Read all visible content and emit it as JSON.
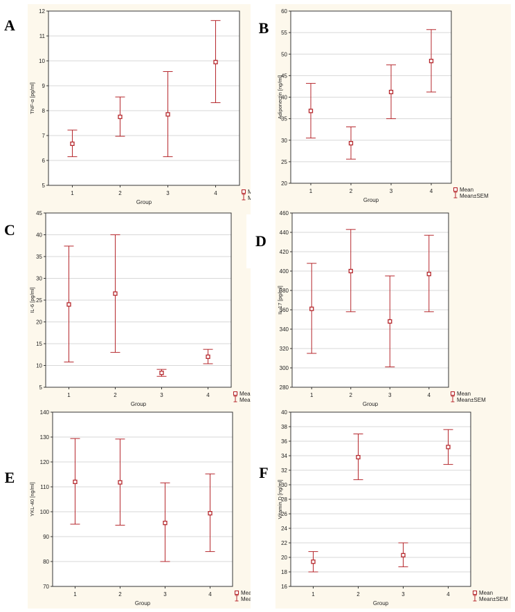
{
  "legend": {
    "mean": "Mean",
    "sem": "Mean±SEM"
  },
  "colors": {
    "series": "#b5262b",
    "grid": "#d7d7d7",
    "axis": "#333333"
  },
  "chart_data": [
    {
      "panel": "A",
      "type": "scatter",
      "title": "",
      "xlabel": "Group",
      "ylabel": "TNF-α [pg/ml]",
      "categories": [
        "1",
        "2",
        "3",
        "4"
      ],
      "ylim": [
        5,
        12
      ],
      "yticks": [
        "5",
        "6",
        "7",
        "8",
        "9",
        "10",
        "11",
        "12"
      ],
      "mean": [
        6.67,
        7.75,
        7.85,
        9.95
      ],
      "lower": [
        6.15,
        6.97,
        6.15,
        8.32
      ],
      "upper": [
        7.22,
        8.55,
        9.57,
        11.62
      ],
      "grid": true,
      "legend_position": "bottom-right"
    },
    {
      "panel": "B",
      "type": "scatter",
      "title": "",
      "xlabel": "Group",
      "ylabel": "Adiponectin [ng/ml]",
      "categories": [
        "1",
        "2",
        "3",
        "4"
      ],
      "ylim": [
        20,
        60
      ],
      "yticks": [
        "20",
        "25",
        "30",
        "35",
        "40",
        "45",
        "50",
        "55",
        "60"
      ],
      "mean": [
        36.8,
        29.3,
        41.2,
        48.4
      ],
      "lower": [
        30.5,
        25.6,
        35.0,
        41.2
      ],
      "upper": [
        43.2,
        33.1,
        47.5,
        55.7
      ],
      "grid": true,
      "legend_position": "bottom-right"
    },
    {
      "panel": "C",
      "type": "scatter",
      "title": "",
      "xlabel": "Group",
      "ylabel": "IL-6 [pg/ml]",
      "categories": [
        "1",
        "2",
        "3",
        "4"
      ],
      "ylim": [
        5,
        45
      ],
      "yticks": [
        "5",
        "10",
        "15",
        "20",
        "25",
        "30",
        "35",
        "40",
        "45"
      ],
      "mean": [
        24.0,
        26.5,
        8.3,
        12.0
      ],
      "lower": [
        10.8,
        13.0,
        7.5,
        10.4
      ],
      "upper": [
        37.4,
        40.0,
        9.1,
        13.7
      ],
      "grid": true,
      "legend_position": "bottom-right"
    },
    {
      "panel": "D",
      "type": "scatter",
      "title": "",
      "xlabel": "Group",
      "ylabel": "IL-17 [pg/ml]",
      "categories": [
        "1",
        "2",
        "3",
        "4"
      ],
      "ylim": [
        280,
        460
      ],
      "yticks": [
        "280",
        "300",
        "320",
        "340",
        "360",
        "380",
        "400",
        "420",
        "440",
        "460"
      ],
      "mean": [
        361,
        400,
        348,
        397
      ],
      "lower": [
        315,
        358,
        301,
        358
      ],
      "upper": [
        408,
        443,
        395,
        437
      ],
      "grid": true,
      "legend_position": "bottom-right"
    },
    {
      "panel": "E",
      "type": "scatter",
      "title": "",
      "xlabel": "Group",
      "ylabel": "YKL-40 [ng/ml]",
      "categories": [
        "1",
        "2",
        "3",
        "4"
      ],
      "ylim": [
        70,
        140
      ],
      "yticks": [
        "70",
        "80",
        "90",
        "100",
        "110",
        "120",
        "130",
        "140"
      ],
      "mean": [
        112.0,
        111.8,
        95.5,
        99.4
      ],
      "lower": [
        95.0,
        94.6,
        80.0,
        84.0
      ],
      "upper": [
        129.4,
        129.2,
        111.6,
        115.2
      ],
      "grid": true,
      "legend_position": "bottom-right"
    },
    {
      "panel": "F",
      "type": "scatter",
      "title": "",
      "xlabel": "Group",
      "ylabel": "Vitamin D [ng/ml]",
      "categories": [
        "1",
        "2",
        "3",
        "4"
      ],
      "ylim": [
        16,
        40
      ],
      "yticks": [
        "16",
        "18",
        "20",
        "22",
        "24",
        "26",
        "28",
        "30",
        "32",
        "34",
        "36",
        "38",
        "40"
      ],
      "mean": [
        19.4,
        33.8,
        20.3,
        35.2
      ],
      "lower": [
        18.0,
        30.7,
        18.7,
        32.8
      ],
      "upper": [
        20.8,
        37.0,
        22.0,
        37.6
      ],
      "grid": true,
      "legend_position": "bottom-right"
    }
  ]
}
